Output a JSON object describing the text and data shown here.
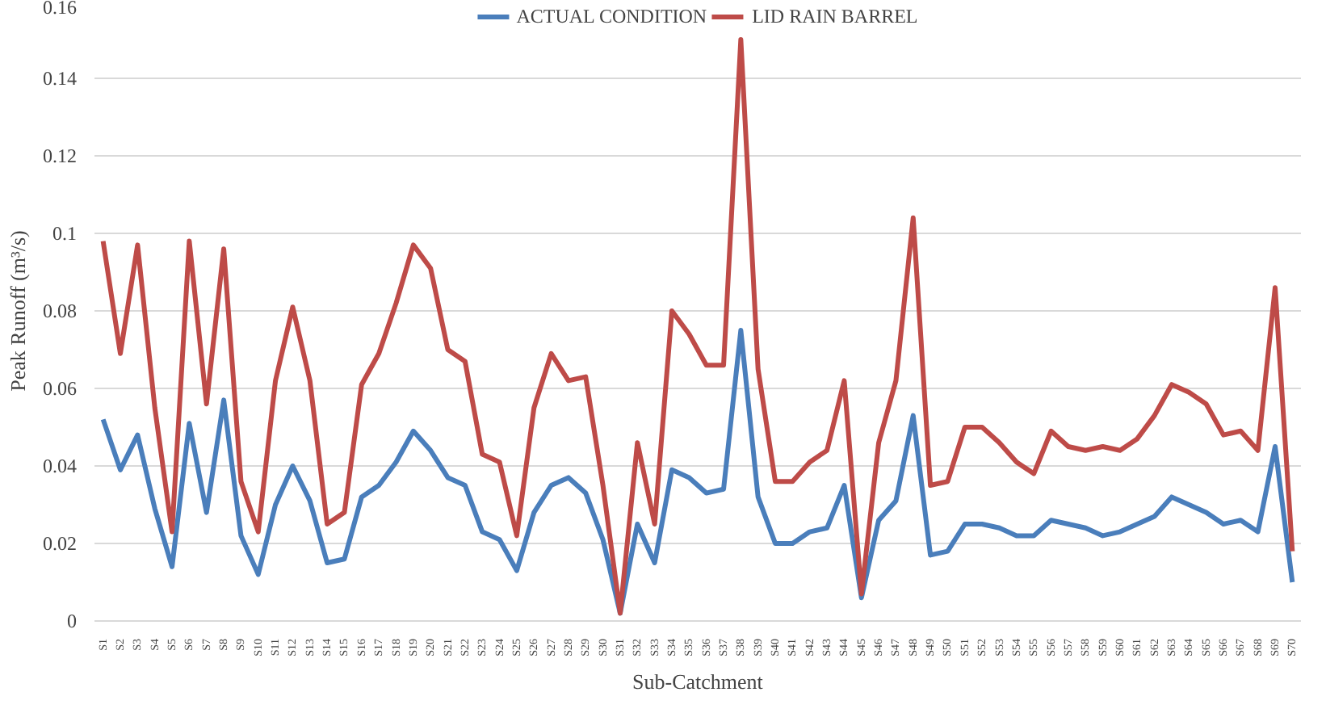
{
  "chart_data": {
    "type": "line",
    "xlabel": "Sub-Catchment",
    "ylabel": "Peak Runoff (m³/s)",
    "categories": [
      "S1",
      "S2",
      "S3",
      "S4",
      "S5",
      "S6",
      "S7",
      "S8",
      "S9",
      "S10",
      "S11",
      "S12",
      "S13",
      "S14",
      "S15",
      "S16",
      "S17",
      "S18",
      "S19",
      "S20",
      "S21",
      "S22",
      "S23",
      "S24",
      "S25",
      "S26",
      "S27",
      "S28",
      "S29",
      "S30",
      "S31",
      "S32",
      "S33",
      "S34",
      "S35",
      "S36",
      "S37",
      "S38",
      "S39",
      "S40",
      "S41",
      "S42",
      "S43",
      "S44",
      "S45",
      "S46",
      "S47",
      "S48",
      "S49",
      "S50",
      "S51",
      "S52",
      "S53",
      "S54",
      "S55",
      "S56",
      "S57",
      "S58",
      "S59",
      "S60",
      "S61",
      "S62",
      "S63",
      "S64",
      "S65",
      "S66",
      "S67",
      "S68",
      "S69",
      "S70"
    ],
    "series": [
      {
        "name": "ACTUAL CONDITION",
        "color": "#4a7ebb",
        "values": [
          0.052,
          0.039,
          0.048,
          0.029,
          0.014,
          0.051,
          0.028,
          0.057,
          0.022,
          0.012,
          0.03,
          0.04,
          0.031,
          0.015,
          0.016,
          0.032,
          0.035,
          0.041,
          0.049,
          0.044,
          0.037,
          0.035,
          0.023,
          0.021,
          0.013,
          0.028,
          0.035,
          0.037,
          0.033,
          0.021,
          0.002,
          0.025,
          0.015,
          0.039,
          0.037,
          0.033,
          0.034,
          0.075,
          0.032,
          0.02,
          0.02,
          0.023,
          0.024,
          0.035,
          0.006,
          0.026,
          0.031,
          0.053,
          0.017,
          0.018,
          0.025,
          0.025,
          0.024,
          0.022,
          0.022,
          0.026,
          0.025,
          0.024,
          0.022,
          0.023,
          0.025,
          0.027,
          0.032,
          0.03,
          0.028,
          0.025,
          0.026,
          0.023,
          0.045,
          0.01
        ]
      },
      {
        "name": "LID RAIN BARREL",
        "color": "#be4b48",
        "values": [
          0.098,
          0.069,
          0.097,
          0.055,
          0.023,
          0.098,
          0.056,
          0.096,
          0.036,
          0.023,
          0.062,
          0.081,
          0.062,
          0.025,
          0.028,
          0.061,
          0.069,
          0.082,
          0.097,
          0.091,
          0.07,
          0.067,
          0.043,
          0.041,
          0.022,
          0.055,
          0.069,
          0.062,
          0.063,
          0.035,
          0.002,
          0.046,
          0.025,
          0.08,
          0.074,
          0.066,
          0.066,
          0.15,
          0.065,
          0.036,
          0.036,
          0.041,
          0.044,
          0.062,
          0.007,
          0.046,
          0.062,
          0.104,
          0.035,
          0.036,
          0.05,
          0.05,
          0.046,
          0.041,
          0.038,
          0.049,
          0.045,
          0.044,
          0.045,
          0.044,
          0.047,
          0.053,
          0.061,
          0.059,
          0.056,
          0.048,
          0.049,
          0.044,
          0.086,
          0.018
        ]
      }
    ],
    "ylim": [
      0,
      0.16
    ],
    "yticks": [
      0,
      0.02,
      0.04,
      0.06,
      0.08,
      0.1,
      0.12,
      0.14,
      0.16
    ],
    "grid": "y",
    "legend": "top",
    "line_style": "solid"
  }
}
